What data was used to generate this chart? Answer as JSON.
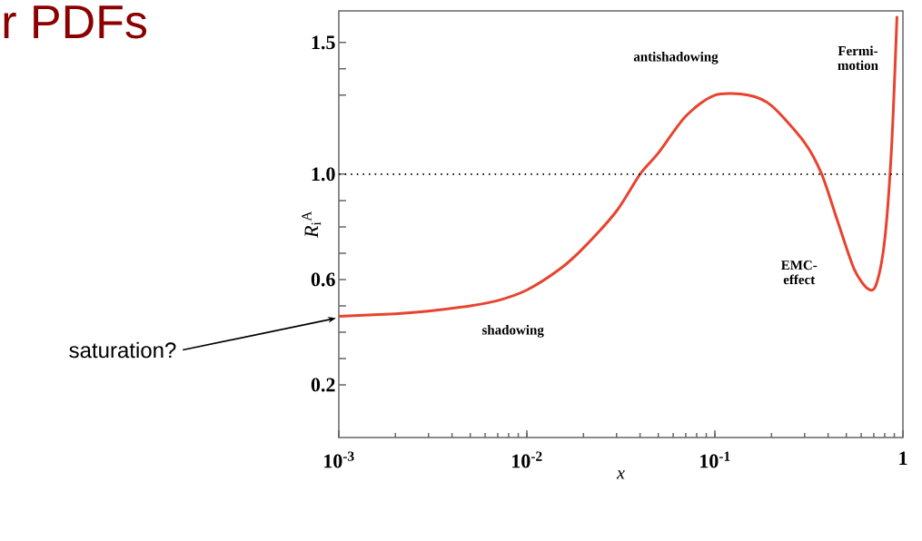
{
  "chart_data": {
    "type": "line",
    "title": "r PDFs",
    "xlabel": "*x*",
    "ylabel": "*R*$_{i}$$^{A}$",
    "log": "x",
    "xlim": [
      0.001,
      1
    ],
    "ylim": [
      0,
      1.62
    ],
    "xticks": [
      {
        "value": 0.001,
        "label": "10$^{-3}$"
      },
      {
        "value": 0.01,
        "label": "10$^{-2}$"
      },
      {
        "value": 0.1,
        "label": "10$^{-1}$"
      },
      {
        "value": 1,
        "label": "1"
      }
    ],
    "yticks": [
      0.2,
      {
        "value": 0.3,
        "label": null
      },
      {
        "value": 0.4,
        "label": null
      },
      {
        "value": 0.5,
        "label": null
      },
      0.6,
      {
        "value": 0.7,
        "label": null
      },
      {
        "value": 0.8,
        "label": null
      },
      {
        "value": 0.9,
        "label": null
      },
      {
        "value": 1.0,
        "label": "1.0"
      },
      {
        "value": 1.3,
        "label": null
      },
      {
        "value": 1.4,
        "label": null
      },
      1.5
    ],
    "x": [
      0.001,
      0.002,
      0.003,
      0.005,
      0.007,
      0.01,
      0.015,
      0.02,
      0.03,
      0.04,
      0.05,
      0.07,
      0.1,
      0.15,
      0.2,
      0.3,
      0.37,
      0.45,
      0.55,
      0.65,
      0.72,
      0.8,
      0.87,
      0.93
    ],
    "series": [
      {
        "color": "#e8432e",
        "values": [
          0.46,
          0.47,
          0.48,
          0.5,
          0.52,
          0.56,
          0.64,
          0.72,
          0.86,
          1.0,
          1.08,
          1.22,
          1.3,
          1.3,
          1.26,
          1.12,
          1.0,
          0.82,
          0.64,
          0.565,
          0.58,
          0.75,
          1.1,
          1.6
        ]
      }
    ],
    "ref_lines": [
      {
        "axis": "y",
        "value": 1.0,
        "line_style": "dotted"
      }
    ],
    "annotations": [
      {
        "text": "antishadowing",
        "x": 0.1,
        "y": 1.3
      },
      {
        "text": "Fermi-motion",
        "x": 0.93,
        "y": 1.6
      },
      "EMC-effect",
      {
        "text": "shadowing",
        "x": 0.005,
        "y": 0.49
      },
      {
        "text": "saturation?",
        "x": 0.001,
        "y": 0.46
      }
    ]
  }
}
